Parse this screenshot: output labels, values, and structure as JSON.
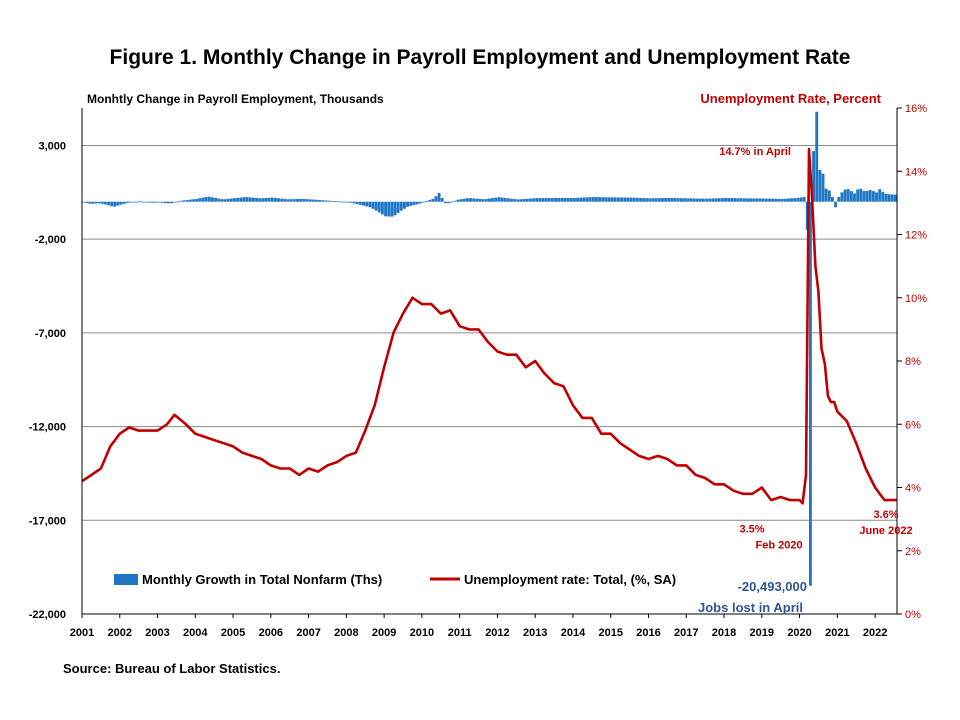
{
  "title": "Figure 1. Monthly Change in Payroll Employment and Unemployment Rate",
  "source": "Source: Bureau of Labor Statistics.",
  "colors": {
    "bars": "#1f77c4",
    "line": "#c00000",
    "grid": "#8c8c8c",
    "left_label": "#000000",
    "right_label": "#c00000",
    "annot_blue": "#2e5597"
  },
  "chart_data": {
    "type": "bar",
    "left_axis": {
      "label": "Monhtly Change in Payroll Employment, Thousands",
      "ylim": [
        -22000,
        5000
      ],
      "ticks": [
        3000,
        -2000,
        -7000,
        -12000,
        -17000,
        -22000
      ],
      "tick_labels": [
        "3,000",
        "-2,000",
        "-7,000",
        "-12,000",
        "-17,000",
        "-22,000"
      ]
    },
    "right_axis": {
      "label": "Unemployment Rate, Percent",
      "ylim": [
        0,
        16
      ],
      "ticks": [
        0,
        2,
        4,
        6,
        8,
        10,
        12,
        14,
        16
      ],
      "tick_labels": [
        "0%",
        "2%",
        "4%",
        "6%",
        "8%",
        "10%",
        "12%",
        "14%",
        "16%"
      ]
    },
    "x_axis": {
      "start": 2001,
      "end": 2022.58,
      "tick_labels": [
        "2001",
        "2002",
        "2003",
        "2004",
        "2005",
        "2006",
        "2007",
        "2008",
        "2009",
        "2010",
        "2011",
        "2012",
        "2013",
        "2014",
        "2015",
        "2016",
        "2017",
        "2018",
        "2019",
        "2020",
        "2021",
        "2022"
      ]
    },
    "grid": true,
    "legend_position": "bottom-left",
    "series": [
      {
        "name": "Monthly Growth in Total Nonfarm (Ths)",
        "type": "bar",
        "axis": "left",
        "points": [
          [
            2001.0,
            -20
          ],
          [
            2001.2,
            -120
          ],
          [
            2001.4,
            -80
          ],
          [
            2001.6,
            -150
          ],
          [
            2001.8,
            -280
          ],
          [
            2001.95,
            -180
          ],
          [
            2002.2,
            -50
          ],
          [
            2002.5,
            20
          ],
          [
            2002.8,
            -60
          ],
          [
            2003.0,
            -40
          ],
          [
            2003.3,
            -100
          ],
          [
            2003.6,
            60
          ],
          [
            2004.0,
            150
          ],
          [
            2004.3,
            280
          ],
          [
            2004.7,
            120
          ],
          [
            2005.0,
            190
          ],
          [
            2005.3,
            250
          ],
          [
            2005.7,
            180
          ],
          [
            2006.0,
            220
          ],
          [
            2006.4,
            130
          ],
          [
            2006.8,
            150
          ],
          [
            2007.2,
            100
          ],
          [
            2007.6,
            40
          ],
          [
            2008.0,
            -20
          ],
          [
            2008.3,
            -150
          ],
          [
            2008.6,
            -300
          ],
          [
            2008.85,
            -600
          ],
          [
            2009.0,
            -780
          ],
          [
            2009.2,
            -800
          ],
          [
            2009.4,
            -500
          ],
          [
            2009.6,
            -250
          ],
          [
            2009.9,
            -110
          ],
          [
            2010.1,
            50
          ],
          [
            2010.3,
            180
          ],
          [
            2010.4,
            520
          ],
          [
            2010.6,
            -130
          ],
          [
            2010.9,
            100
          ],
          [
            2011.2,
            200
          ],
          [
            2011.6,
            130
          ],
          [
            2012.0,
            240
          ],
          [
            2012.5,
            120
          ],
          [
            2013.0,
            190
          ],
          [
            2013.5,
            200
          ],
          [
            2014.0,
            200
          ],
          [
            2014.5,
            250
          ],
          [
            2015.0,
            230
          ],
          [
            2015.5,
            220
          ],
          [
            2016.0,
            180
          ],
          [
            2016.5,
            200
          ],
          [
            2017.0,
            180
          ],
          [
            2017.5,
            160
          ],
          [
            2018.0,
            200
          ],
          [
            2018.5,
            180
          ],
          [
            2019.0,
            170
          ],
          [
            2019.5,
            150
          ],
          [
            2019.9,
            200
          ],
          [
            2020.08,
            250
          ],
          [
            2020.17,
            -1500
          ],
          [
            2020.25,
            -20493
          ],
          [
            2020.33,
            2700
          ],
          [
            2020.42,
            4800
          ],
          [
            2020.5,
            1700
          ],
          [
            2020.58,
            1500
          ],
          [
            2020.67,
            700
          ],
          [
            2020.75,
            600
          ],
          [
            2020.83,
            250
          ],
          [
            2020.92,
            -300
          ],
          [
            2021.0,
            250
          ],
          [
            2021.1,
            550
          ],
          [
            2021.2,
            700
          ],
          [
            2021.3,
            650
          ],
          [
            2021.4,
            400
          ],
          [
            2021.5,
            650
          ],
          [
            2021.6,
            700
          ],
          [
            2021.7,
            500
          ],
          [
            2021.8,
            650
          ],
          [
            2021.9,
            580
          ],
          [
            2022.0,
            500
          ],
          [
            2022.1,
            700
          ],
          [
            2022.2,
            450
          ],
          [
            2022.3,
            400
          ],
          [
            2022.4,
            390
          ],
          [
            2022.5,
            380
          ]
        ]
      },
      {
        "name": "Unemployment rate: Total, (%, SA)",
        "type": "line",
        "axis": "right",
        "points": [
          [
            2001.0,
            4.2
          ],
          [
            2001.25,
            4.4
          ],
          [
            2001.5,
            4.6
          ],
          [
            2001.75,
            5.3
          ],
          [
            2002.0,
            5.7
          ],
          [
            2002.25,
            5.9
          ],
          [
            2002.5,
            5.8
          ],
          [
            2002.75,
            5.8
          ],
          [
            2003.0,
            5.8
          ],
          [
            2003.25,
            6.0
          ],
          [
            2003.45,
            6.3
          ],
          [
            2003.75,
            6.0
          ],
          [
            2004.0,
            5.7
          ],
          [
            2004.25,
            5.6
          ],
          [
            2004.5,
            5.5
          ],
          [
            2004.75,
            5.4
          ],
          [
            2005.0,
            5.3
          ],
          [
            2005.25,
            5.1
          ],
          [
            2005.5,
            5.0
          ],
          [
            2005.75,
            4.9
          ],
          [
            2006.0,
            4.7
          ],
          [
            2006.25,
            4.6
          ],
          [
            2006.5,
            4.6
          ],
          [
            2006.75,
            4.4
          ],
          [
            2007.0,
            4.6
          ],
          [
            2007.25,
            4.5
          ],
          [
            2007.5,
            4.7
          ],
          [
            2007.75,
            4.8
          ],
          [
            2008.0,
            5.0
          ],
          [
            2008.25,
            5.1
          ],
          [
            2008.5,
            5.8
          ],
          [
            2008.75,
            6.6
          ],
          [
            2009.0,
            7.8
          ],
          [
            2009.25,
            8.9
          ],
          [
            2009.5,
            9.5
          ],
          [
            2009.75,
            10.0
          ],
          [
            2010.0,
            9.8
          ],
          [
            2010.25,
            9.8
          ],
          [
            2010.5,
            9.5
          ],
          [
            2010.75,
            9.6
          ],
          [
            2011.0,
            9.1
          ],
          [
            2011.25,
            9.0
          ],
          [
            2011.5,
            9.0
          ],
          [
            2011.75,
            8.6
          ],
          [
            2012.0,
            8.3
          ],
          [
            2012.25,
            8.2
          ],
          [
            2012.5,
            8.2
          ],
          [
            2012.75,
            7.8
          ],
          [
            2013.0,
            8.0
          ],
          [
            2013.25,
            7.6
          ],
          [
            2013.5,
            7.3
          ],
          [
            2013.75,
            7.2
          ],
          [
            2014.0,
            6.6
          ],
          [
            2014.25,
            6.2
          ],
          [
            2014.5,
            6.2
          ],
          [
            2014.75,
            5.7
          ],
          [
            2015.0,
            5.7
          ],
          [
            2015.25,
            5.4
          ],
          [
            2015.5,
            5.2
          ],
          [
            2015.75,
            5.0
          ],
          [
            2016.0,
            4.9
          ],
          [
            2016.25,
            5.0
          ],
          [
            2016.5,
            4.9
          ],
          [
            2016.75,
            4.7
          ],
          [
            2017.0,
            4.7
          ],
          [
            2017.25,
            4.4
          ],
          [
            2017.5,
            4.3
          ],
          [
            2017.75,
            4.1
          ],
          [
            2018.0,
            4.1
          ],
          [
            2018.25,
            3.9
          ],
          [
            2018.5,
            3.8
          ],
          [
            2018.75,
            3.8
          ],
          [
            2019.0,
            4.0
          ],
          [
            2019.25,
            3.6
          ],
          [
            2019.5,
            3.7
          ],
          [
            2019.75,
            3.6
          ],
          [
            2020.0,
            3.6
          ],
          [
            2020.08,
            3.5
          ],
          [
            2020.17,
            4.4
          ],
          [
            2020.25,
            14.7
          ],
          [
            2020.33,
            13.2
          ],
          [
            2020.42,
            11.0
          ],
          [
            2020.5,
            10.2
          ],
          [
            2020.58,
            8.4
          ],
          [
            2020.67,
            7.9
          ],
          [
            2020.75,
            6.9
          ],
          [
            2020.83,
            6.7
          ],
          [
            2020.92,
            6.7
          ],
          [
            2021.0,
            6.4
          ],
          [
            2021.25,
            6.1
          ],
          [
            2021.5,
            5.4
          ],
          [
            2021.75,
            4.6
          ],
          [
            2022.0,
            4.0
          ],
          [
            2022.25,
            3.6
          ],
          [
            2022.5,
            3.6
          ],
          [
            2022.58,
            3.6
          ]
        ]
      }
    ],
    "annotations": [
      {
        "text": "14.7% in April",
        "color": "red",
        "x": 2020.25,
        "y": 14.7,
        "axis": "right"
      },
      {
        "text": "3.5%",
        "color": "red",
        "x": 2020.08,
        "y": 3.5,
        "axis": "right"
      },
      {
        "text": "Feb 2020",
        "color": "red",
        "x": 2020.08,
        "y": 3.5,
        "axis": "right"
      },
      {
        "text": "3.6%",
        "color": "red",
        "x": 2022.5,
        "y": 3.6,
        "axis": "right"
      },
      {
        "text": "June 2022",
        "color": "red",
        "x": 2022.5,
        "y": 3.6,
        "axis": "right"
      },
      {
        "text": "-20,493,000",
        "color": "blue",
        "x": 2020.25,
        "y": -20493,
        "axis": "left"
      },
      {
        "text": "Jobs lost in April",
        "color": "blue",
        "x": 2020.25,
        "y": -20493,
        "axis": "left"
      }
    ]
  }
}
